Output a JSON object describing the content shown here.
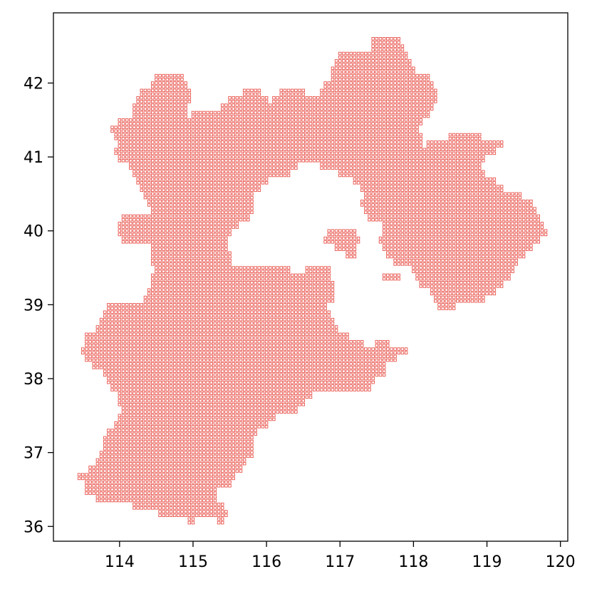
{
  "chart_data": {
    "type": "scatter",
    "marker": "hollow-square",
    "marker_color": "#e8524a",
    "grid": false,
    "legend": "none",
    "title": "",
    "xlabel": "",
    "ylabel": "",
    "xlim": [
      113.1,
      120.1
    ],
    "ylim": [
      35.8,
      42.95
    ],
    "cell_size_deg": [
      0.05,
      0.05
    ],
    "xticks": [
      114,
      115,
      116,
      117,
      118,
      119,
      120
    ],
    "yticks": [
      36,
      37,
      38,
      39,
      40,
      41,
      42
    ],
    "xtick_labels": [
      "114",
      "115",
      "116",
      "117",
      "118",
      "119",
      "120"
    ],
    "ytick_labels": [
      "36",
      "37",
      "38",
      "39",
      "40",
      "41",
      "42"
    ],
    "rows": [
      {
        "lat": 42.6,
        "spans": [
          [
            117.45,
            117.8
          ]
        ]
      },
      {
        "lat": 42.5,
        "spans": [
          [
            117.45,
            117.85
          ]
        ]
      },
      {
        "lat": 42.4,
        "spans": [
          [
            117.0,
            117.9
          ]
        ]
      },
      {
        "lat": 42.3,
        "spans": [
          [
            116.95,
            117.95
          ]
        ]
      },
      {
        "lat": 42.2,
        "spans": [
          [
            116.9,
            118.0
          ]
        ]
      },
      {
        "lat": 42.1,
        "spans": [
          [
            114.5,
            114.85
          ],
          [
            116.9,
            118.2
          ]
        ]
      },
      {
        "lat": 42.0,
        "spans": [
          [
            114.45,
            114.9
          ],
          [
            116.8,
            118.25
          ]
        ]
      },
      {
        "lat": 41.9,
        "spans": [
          [
            114.3,
            114.95
          ],
          [
            115.7,
            115.9
          ],
          [
            116.2,
            116.5
          ],
          [
            116.75,
            118.3
          ]
        ]
      },
      {
        "lat": 41.8,
        "spans": [
          [
            114.25,
            114.95
          ],
          [
            115.5,
            116.0
          ],
          [
            116.1,
            118.3
          ]
        ]
      },
      {
        "lat": 41.7,
        "spans": [
          [
            114.2,
            114.9
          ],
          [
            115.4,
            118.25
          ]
        ]
      },
      {
        "lat": 41.6,
        "spans": [
          [
            114.2,
            114.9
          ],
          [
            115.0,
            118.2
          ]
        ]
      },
      {
        "lat": 41.5,
        "spans": [
          [
            114.0,
            118.1
          ]
        ]
      },
      {
        "lat": 41.4,
        "spans": [
          [
            113.9,
            118.05
          ]
        ]
      },
      {
        "lat": 41.3,
        "spans": [
          [
            113.95,
            118.1
          ],
          [
            118.5,
            118.9
          ]
        ]
      },
      {
        "lat": 41.2,
        "spans": [
          [
            114.0,
            118.1
          ],
          [
            118.2,
            119.2
          ]
        ]
      },
      {
        "lat": 41.1,
        "spans": [
          [
            113.95,
            119.1
          ]
        ]
      },
      {
        "lat": 41.0,
        "spans": [
          [
            114.0,
            118.95
          ]
        ]
      },
      {
        "lat": 40.9,
        "spans": [
          [
            114.15,
            116.4
          ],
          [
            116.75,
            118.9
          ]
        ]
      },
      {
        "lat": 40.8,
        "spans": [
          [
            114.2,
            116.3
          ],
          [
            117.0,
            118.95
          ]
        ]
      },
      {
        "lat": 40.7,
        "spans": [
          [
            114.25,
            116.0
          ],
          [
            117.2,
            119.1
          ]
        ]
      },
      {
        "lat": 40.6,
        "spans": [
          [
            114.3,
            115.9
          ],
          [
            117.3,
            119.2
          ]
        ]
      },
      {
        "lat": 40.5,
        "spans": [
          [
            114.35,
            115.8
          ],
          [
            117.35,
            119.45
          ]
        ]
      },
      {
        "lat": 40.4,
        "spans": [
          [
            114.4,
            115.8
          ],
          [
            117.3,
            119.6
          ]
        ]
      },
      {
        "lat": 40.3,
        "spans": [
          [
            114.45,
            115.8
          ],
          [
            117.35,
            119.65
          ]
        ]
      },
      {
        "lat": 40.2,
        "spans": [
          [
            114.05,
            115.75
          ],
          [
            117.4,
            119.7
          ]
        ]
      },
      {
        "lat": 40.1,
        "spans": [
          [
            114.0,
            115.6
          ],
          [
            117.6,
            119.75
          ]
        ]
      },
      {
        "lat": 40.0,
        "spans": [
          [
            114.0,
            115.5
          ],
          [
            116.85,
            117.2
          ],
          [
            117.6,
            119.8
          ]
        ]
      },
      {
        "lat": 39.9,
        "spans": [
          [
            114.05,
            115.45
          ],
          [
            116.8,
            117.25
          ],
          [
            117.55,
            119.7
          ]
        ]
      },
      {
        "lat": 39.8,
        "spans": [
          [
            114.45,
            115.45
          ],
          [
            116.95,
            117.2
          ],
          [
            117.6,
            119.6
          ]
        ]
      },
      {
        "lat": 39.7,
        "spans": [
          [
            114.45,
            115.5
          ],
          [
            117.1,
            117.2
          ],
          [
            117.65,
            119.5
          ]
        ]
      },
      {
        "lat": 39.6,
        "spans": [
          [
            114.45,
            115.5
          ],
          [
            117.75,
            119.4
          ]
        ]
      },
      {
        "lat": 39.5,
        "spans": [
          [
            114.5,
            116.3
          ],
          [
            116.55,
            116.85
          ],
          [
            118.0,
            119.35
          ]
        ]
      },
      {
        "lat": 39.4,
        "spans": [
          [
            114.45,
            116.85
          ],
          [
            117.6,
            117.8
          ],
          [
            118.05,
            119.3
          ]
        ]
      },
      {
        "lat": 39.3,
        "spans": [
          [
            114.45,
            116.9
          ],
          [
            118.1,
            119.2
          ]
        ]
      },
      {
        "lat": 39.2,
        "spans": [
          [
            114.4,
            116.9
          ],
          [
            118.25,
            119.1
          ]
        ]
      },
      {
        "lat": 39.1,
        "spans": [
          [
            114.35,
            116.9
          ],
          [
            118.3,
            118.95
          ]
        ]
      },
      {
        "lat": 39.0,
        "spans": [
          [
            113.85,
            114.15
          ],
          [
            114.2,
            116.8
          ],
          [
            118.35,
            118.55
          ]
        ]
      },
      {
        "lat": 38.9,
        "spans": [
          [
            113.8,
            116.85
          ]
        ]
      },
      {
        "lat": 38.8,
        "spans": [
          [
            113.75,
            116.9
          ]
        ]
      },
      {
        "lat": 38.7,
        "spans": [
          [
            113.7,
            116.95
          ]
        ]
      },
      {
        "lat": 38.6,
        "spans": [
          [
            113.55,
            117.1
          ]
        ]
      },
      {
        "lat": 38.5,
        "spans": [
          [
            113.55,
            117.3
          ],
          [
            117.5,
            117.65
          ]
        ]
      },
      {
        "lat": 38.4,
        "spans": [
          [
            113.5,
            117.9
          ]
        ]
      },
      {
        "lat": 38.3,
        "spans": [
          [
            113.55,
            117.75
          ]
        ]
      },
      {
        "lat": 38.2,
        "spans": [
          [
            113.65,
            117.6
          ]
        ]
      },
      {
        "lat": 38.1,
        "spans": [
          [
            113.8,
            117.6
          ]
        ]
      },
      {
        "lat": 38.0,
        "spans": [
          [
            113.85,
            117.45
          ]
        ]
      },
      {
        "lat": 37.9,
        "spans": [
          [
            113.9,
            117.4
          ]
        ]
      },
      {
        "lat": 37.8,
        "spans": [
          [
            114.0,
            116.6
          ]
        ]
      },
      {
        "lat": 37.7,
        "spans": [
          [
            114.0,
            116.5
          ]
        ]
      },
      {
        "lat": 37.6,
        "spans": [
          [
            114.05,
            116.4
          ]
        ]
      },
      {
        "lat": 37.5,
        "spans": [
          [
            114.0,
            116.1
          ]
        ]
      },
      {
        "lat": 37.4,
        "spans": [
          [
            113.95,
            116.0
          ]
        ]
      },
      {
        "lat": 37.3,
        "spans": [
          [
            113.85,
            115.85
          ]
        ]
      },
      {
        "lat": 37.2,
        "spans": [
          [
            113.8,
            115.8
          ]
        ]
      },
      {
        "lat": 37.1,
        "spans": [
          [
            113.8,
            115.8
          ]
        ]
      },
      {
        "lat": 37.0,
        "spans": [
          [
            113.75,
            115.8
          ]
        ]
      },
      {
        "lat": 36.9,
        "spans": [
          [
            113.7,
            115.7
          ]
        ]
      },
      {
        "lat": 36.8,
        "spans": [
          [
            113.6,
            115.65
          ]
        ]
      },
      {
        "lat": 36.7,
        "spans": [
          [
            113.45,
            115.55
          ]
        ]
      },
      {
        "lat": 36.6,
        "spans": [
          [
            113.55,
            115.5
          ]
        ]
      },
      {
        "lat": 36.5,
        "spans": [
          [
            113.55,
            115.3
          ]
        ]
      },
      {
        "lat": 36.4,
        "spans": [
          [
            113.7,
            115.3
          ]
        ]
      },
      {
        "lat": 36.3,
        "spans": [
          [
            114.2,
            115.4
          ]
        ]
      },
      {
        "lat": 36.2,
        "spans": [
          [
            114.55,
            115.45
          ]
        ]
      },
      {
        "lat": 36.1,
        "spans": [
          [
            114.95,
            115.0
          ],
          [
            115.35,
            115.4
          ]
        ]
      }
    ]
  }
}
